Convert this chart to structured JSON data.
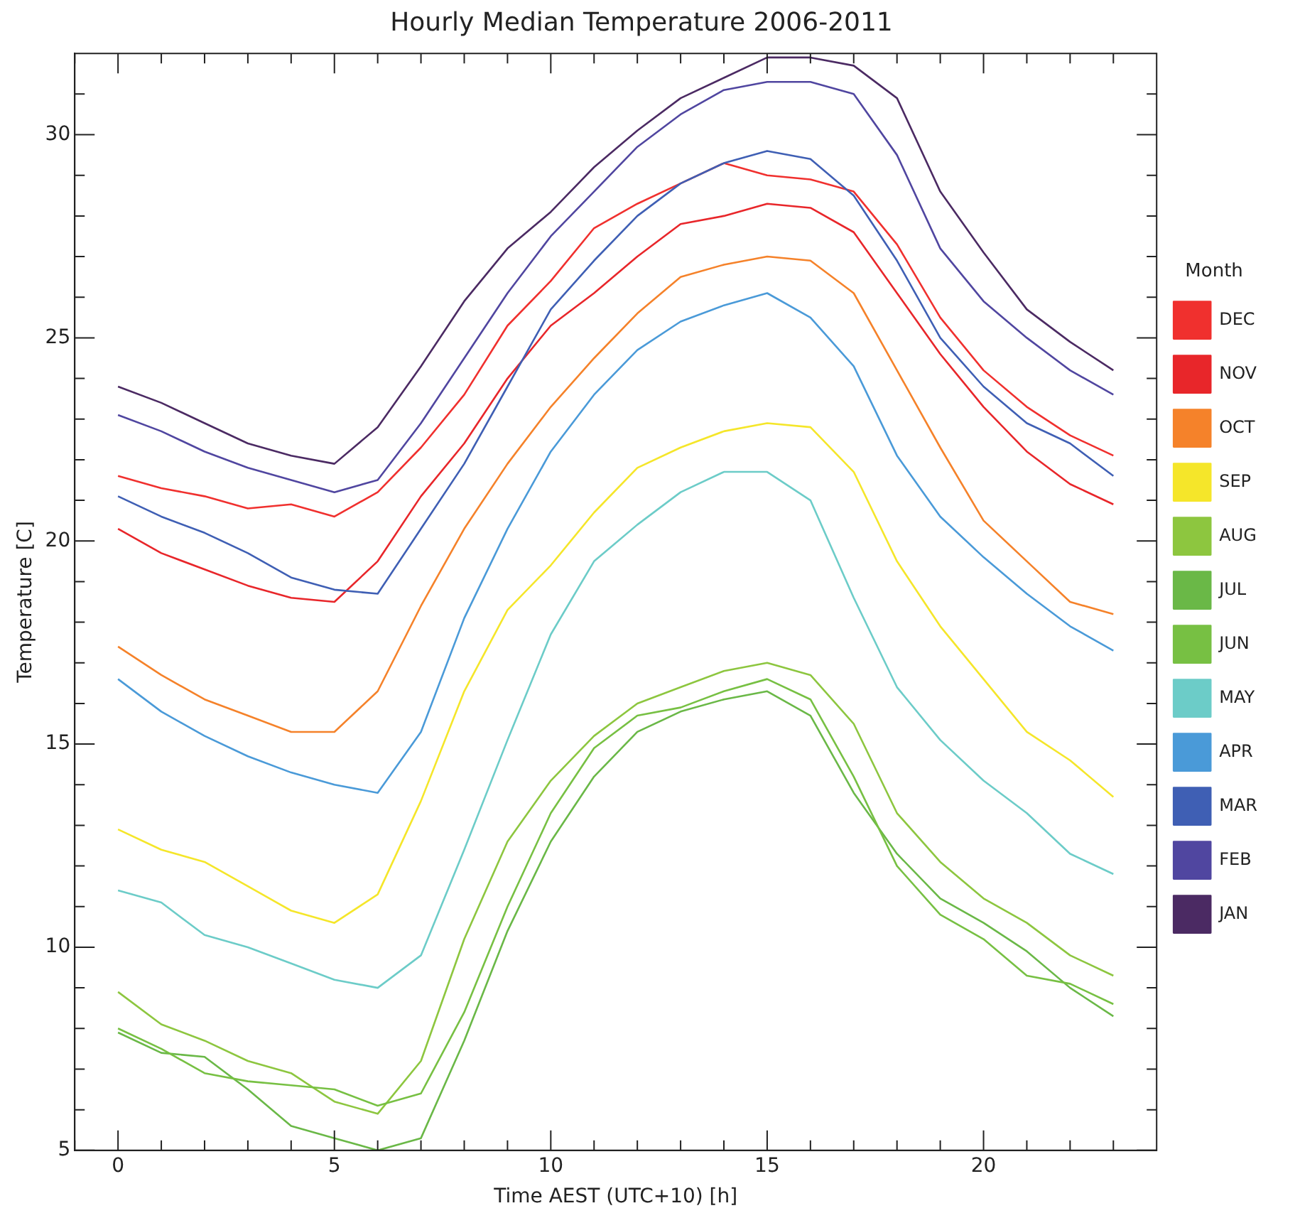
{
  "chart_data": {
    "type": "line",
    "title": "Hourly Median Temperature 2006-2011",
    "xlabel": "Time AEST (UTC+10) [h]",
    "ylabel": "Temperature [C]",
    "legend_title": "Month",
    "x": [
      0,
      1,
      2,
      3,
      4,
      5,
      6,
      7,
      8,
      9,
      10,
      11,
      12,
      13,
      14,
      15,
      16,
      17,
      18,
      19,
      20,
      21,
      22,
      23
    ],
    "xlim": [
      -1,
      24
    ],
    "ylim": [
      5,
      32
    ],
    "xticks": [
      {
        "value": -1,
        "label": null
      },
      0,
      {
        "value": 1,
        "label": null
      },
      {
        "value": 2,
        "label": null
      },
      {
        "value": 3,
        "label": null
      },
      {
        "value": 4,
        "label": null
      },
      5,
      {
        "value": 6,
        "label": null
      },
      {
        "value": 7,
        "label": null
      },
      {
        "value": 8,
        "label": null
      },
      {
        "value": 9,
        "label": null
      },
      10,
      {
        "value": 11,
        "label": null
      },
      {
        "value": 12,
        "label": null
      },
      {
        "value": 13,
        "label": null
      },
      {
        "value": 14,
        "label": null
      },
      15,
      {
        "value": 16,
        "label": null
      },
      {
        "value": 17,
        "label": null
      },
      {
        "value": 18,
        "label": null
      },
      {
        "value": 19,
        "label": null
      },
      20,
      {
        "value": 21,
        "label": null
      },
      {
        "value": 22,
        "label": null
      },
      {
        "value": 23,
        "label": null
      }
    ],
    "yticks": [
      5,
      {
        "value": 6,
        "label": null
      },
      {
        "value": 7,
        "label": null
      },
      {
        "value": 8,
        "label": null
      },
      {
        "value": 9,
        "label": null
      },
      10,
      {
        "value": 11,
        "label": null
      },
      {
        "value": 12,
        "label": null
      },
      {
        "value": 13,
        "label": null
      },
      {
        "value": 14,
        "label": null
      },
      15,
      {
        "value": 16,
        "label": null
      },
      {
        "value": 17,
        "label": null
      },
      {
        "value": 18,
        "label": null
      },
      {
        "value": 19,
        "label": null
      },
      20,
      {
        "value": 21,
        "label": null
      },
      {
        "value": 22,
        "label": null
      },
      {
        "value": 23,
        "label": null
      },
      {
        "value": 24,
        "label": null
      },
      25,
      {
        "value": 26,
        "label": null
      },
      {
        "value": 27,
        "label": null
      },
      {
        "value": 28,
        "label": null
      },
      {
        "value": 29,
        "label": null
      },
      30,
      {
        "value": 31,
        "label": null
      }
    ],
    "grid": false,
    "legend": "right",
    "marker": "none",
    "line_style": "solid",
    "series": [
      {
        "name": "JAN",
        "color": "#4b2a63",
        "values": [
          23.8,
          23.4,
          22.9,
          22.4,
          22.1,
          21.9,
          22.8,
          24.3,
          25.9,
          27.2,
          28.1,
          29.2,
          30.1,
          30.9,
          31.4,
          31.9,
          31.9,
          31.7,
          30.9,
          28.6,
          27.1,
          25.7,
          24.9,
          24.2
        ]
      },
      {
        "name": "FEB",
        "color": "#5046a0",
        "values": [
          23.1,
          22.7,
          22.2,
          21.8,
          21.5,
          21.2,
          21.5,
          22.9,
          24.5,
          26.1,
          27.5,
          28.6,
          29.7,
          30.5,
          31.1,
          31.3,
          31.3,
          31.0,
          29.5,
          27.2,
          25.9,
          25.0,
          24.2,
          23.6
        ]
      },
      {
        "name": "MAR",
        "color": "#3f5fb4",
        "values": [
          21.1,
          20.6,
          20.2,
          19.7,
          19.1,
          18.8,
          18.7,
          20.3,
          21.9,
          23.8,
          25.7,
          26.9,
          28.0,
          28.8,
          29.3,
          29.6,
          29.4,
          28.5,
          26.9,
          25.0,
          23.8,
          22.9,
          22.4,
          21.6
        ]
      },
      {
        "name": "APR",
        "color": "#4a9ad8",
        "values": [
          16.6,
          15.8,
          15.2,
          14.7,
          14.3,
          14.0,
          13.8,
          15.3,
          18.1,
          20.3,
          22.2,
          23.6,
          24.7,
          25.4,
          25.8,
          26.1,
          25.5,
          24.3,
          22.1,
          20.6,
          19.6,
          18.7,
          17.9,
          17.3
        ]
      },
      {
        "name": "MAY",
        "color": "#6cccc8",
        "values": [
          11.4,
          11.1,
          10.3,
          10.0,
          9.6,
          9.2,
          9.0,
          9.8,
          12.4,
          15.1,
          17.7,
          19.5,
          20.4,
          21.2,
          21.7,
          21.7,
          21.0,
          18.6,
          16.4,
          15.1,
          14.1,
          13.3,
          12.3,
          11.8
        ]
      },
      {
        "name": "JUN",
        "color": "#77c043",
        "values": [
          8.0,
          7.5,
          6.9,
          6.7,
          6.6,
          6.5,
          6.1,
          6.4,
          8.4,
          11.0,
          13.3,
          14.9,
          15.7,
          15.9,
          16.3,
          16.6,
          16.1,
          14.2,
          12.0,
          10.8,
          10.2,
          9.3,
          9.1,
          8.6
        ]
      },
      {
        "name": "JUL",
        "color": "#6ab847",
        "values": [
          7.9,
          7.4,
          7.3,
          6.5,
          5.6,
          5.3,
          5.0,
          5.3,
          7.7,
          10.4,
          12.6,
          14.2,
          15.3,
          15.8,
          16.1,
          16.3,
          15.7,
          13.8,
          12.3,
          11.2,
          10.6,
          9.9,
          9.0,
          8.3
        ]
      },
      {
        "name": "AUG",
        "color": "#8dc63f",
        "values": [
          8.9,
          8.1,
          7.7,
          7.2,
          6.9,
          6.2,
          5.9,
          7.2,
          10.2,
          12.6,
          14.1,
          15.2,
          16.0,
          16.4,
          16.8,
          17.0,
          16.7,
          15.5,
          13.3,
          12.1,
          11.2,
          10.6,
          9.8,
          9.3
        ]
      },
      {
        "name": "SEP",
        "color": "#f5e62a",
        "values": [
          12.9,
          12.4,
          12.1,
          11.5,
          10.9,
          10.6,
          11.3,
          13.6,
          16.3,
          18.3,
          19.4,
          20.7,
          21.8,
          22.3,
          22.7,
          22.9,
          22.8,
          21.7,
          19.5,
          17.9,
          16.6,
          15.3,
          14.6,
          13.7
        ]
      },
      {
        "name": "OCT",
        "color": "#f5822a",
        "values": [
          17.4,
          16.7,
          16.1,
          15.7,
          15.3,
          15.3,
          16.3,
          18.4,
          20.3,
          21.9,
          23.3,
          24.5,
          25.6,
          26.5,
          26.8,
          27.0,
          26.9,
          26.1,
          24.2,
          22.3,
          20.5,
          19.5,
          18.5,
          18.2
        ]
      },
      {
        "name": "NOV",
        "color": "#e8262a",
        "values": [
          20.3,
          19.7,
          19.3,
          18.9,
          18.6,
          18.5,
          19.5,
          21.1,
          22.4,
          24.0,
          25.3,
          26.1,
          27.0,
          27.8,
          28.0,
          28.3,
          28.2,
          27.6,
          26.1,
          24.6,
          23.3,
          22.2,
          21.4,
          20.9
        ]
      },
      {
        "name": "DEC",
        "color": "#f0302e",
        "values": [
          21.6,
          21.3,
          21.1,
          20.8,
          20.9,
          20.6,
          21.2,
          22.3,
          23.6,
          25.3,
          26.4,
          27.7,
          28.3,
          28.8,
          29.3,
          29.0,
          28.9,
          28.6,
          27.3,
          25.5,
          24.2,
          23.3,
          22.6,
          22.1
        ]
      }
    ]
  }
}
